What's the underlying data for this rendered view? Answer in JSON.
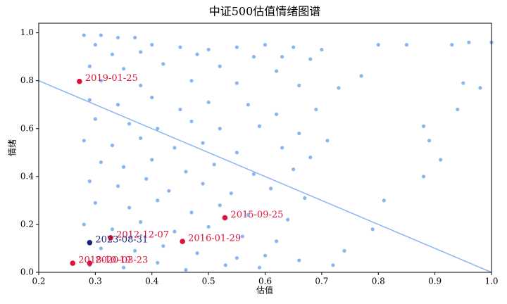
{
  "chart_data": {
    "type": "scatter",
    "title": "中证500估值情绪图谱",
    "x_label": "估值",
    "y_label": "情绪",
    "xlim": [
      0.2,
      1.0
    ],
    "ylim": [
      0,
      1.04
    ],
    "xticks": [
      0.2,
      0.3,
      0.4,
      0.5,
      0.6,
      0.7,
      0.8,
      0.9,
      {
        "value": 1.0,
        "label": "1.0"
      }
    ],
    "yticks": [
      {
        "value": 0.0,
        "label": "0.0"
      },
      0.2,
      0.4,
      0.6,
      0.8,
      {
        "value": 1.0,
        "label": "1.0"
      }
    ],
    "points": {
      "color": "#8ab6f0",
      "x": [
        0.28,
        0.31,
        0.34,
        0.37,
        0.3,
        0.4,
        0.45,
        0.5,
        0.55,
        0.6,
        0.65,
        0.7,
        0.33,
        0.38,
        0.48,
        0.58,
        0.63,
        0.68,
        0.29,
        0.35,
        0.42,
        0.52,
        0.62,
        0.31,
        0.38,
        0.47,
        0.55,
        0.66,
        0.73,
        0.29,
        0.34,
        0.4,
        0.45,
        0.5,
        0.57,
        0.62,
        0.69,
        0.3,
        0.36,
        0.41,
        0.47,
        0.52,
        0.59,
        0.66,
        0.71,
        0.28,
        0.33,
        0.38,
        0.44,
        0.49,
        0.55,
        0.63,
        0.68,
        0.31,
        0.35,
        0.4,
        0.46,
        0.51,
        0.58,
        0.65,
        0.29,
        0.34,
        0.39,
        0.43,
        0.49,
        0.54,
        0.61,
        0.67,
        0.3,
        0.36,
        0.41,
        0.47,
        0.52,
        0.57,
        0.64,
        0.28,
        0.33,
        0.38,
        0.44,
        0.5,
        0.56,
        0.62,
        0.31,
        0.37,
        0.42,
        0.48,
        0.55,
        0.6,
        0.29,
        0.35,
        0.41,
        0.46,
        0.53,
        0.59,
        0.66,
        0.8,
        0.85,
        0.93,
        0.96,
        1.0,
        0.77,
        0.95,
        0.98,
        0.94,
        0.88,
        0.89,
        0.91,
        0.88,
        0.81,
        0.79,
        0.74,
        0.72
      ],
      "y": [
        0.99,
        0.99,
        0.98,
        0.98,
        0.95,
        0.95,
        0.94,
        0.93,
        0.94,
        0.95,
        0.94,
        0.93,
        0.91,
        0.92,
        0.91,
        0.9,
        0.9,
        0.89,
        0.86,
        0.85,
        0.87,
        0.86,
        0.84,
        0.8,
        0.78,
        0.8,
        0.79,
        0.78,
        0.77,
        0.72,
        0.7,
        0.73,
        0.68,
        0.71,
        0.7,
        0.66,
        0.68,
        0.64,
        0.62,
        0.6,
        0.63,
        0.6,
        0.61,
        0.58,
        0.55,
        0.55,
        0.53,
        0.56,
        0.52,
        0.54,
        0.5,
        0.52,
        0.48,
        0.46,
        0.44,
        0.47,
        0.42,
        0.45,
        0.41,
        0.43,
        0.38,
        0.36,
        0.39,
        0.34,
        0.37,
        0.33,
        0.35,
        0.31,
        0.29,
        0.27,
        0.3,
        0.25,
        0.28,
        0.24,
        0.22,
        0.2,
        0.18,
        0.21,
        0.17,
        0.19,
        0.15,
        0.13,
        0.1,
        0.09,
        0.11,
        0.08,
        0.06,
        0.07,
        0.03,
        0.02,
        0.04,
        0.01,
        0.03,
        0.02,
        0.05,
        0.95,
        0.95,
        0.95,
        0.96,
        0.96,
        0.82,
        0.79,
        0.77,
        0.68,
        0.61,
        0.55,
        0.47,
        0.4,
        0.3,
        0.18,
        0.09,
        0.03
      ]
    },
    "line": {
      "color": "#8ab6f0",
      "x": [
        0.2,
        1.0
      ],
      "y": [
        0.8,
        0.0
      ]
    },
    "highlights": [
      {
        "label": "2019-01-25",
        "x": 0.272,
        "y": 0.797,
        "color": "#dc143c"
      },
      {
        "label": "2015-09-25",
        "x": 0.529,
        "y": 0.228,
        "color": "#dc143c"
      },
      {
        "label": "2012-12-07",
        "x": 0.327,
        "y": 0.144,
        "color": "#dc143c"
      },
      {
        "label": "2016-01-29",
        "x": 0.454,
        "y": 0.129,
        "color": "#dc143c"
      },
      {
        "label": "2018-10-19",
        "x": 0.26,
        "y": 0.038,
        "color": "#dc143c"
      },
      {
        "label": "2020-03-23",
        "x": 0.29,
        "y": 0.038,
        "color": "#dc143c"
      },
      {
        "label": "2023-08-31",
        "x": 0.29,
        "y": 0.124,
        "color": "#1a237e"
      }
    ]
  }
}
